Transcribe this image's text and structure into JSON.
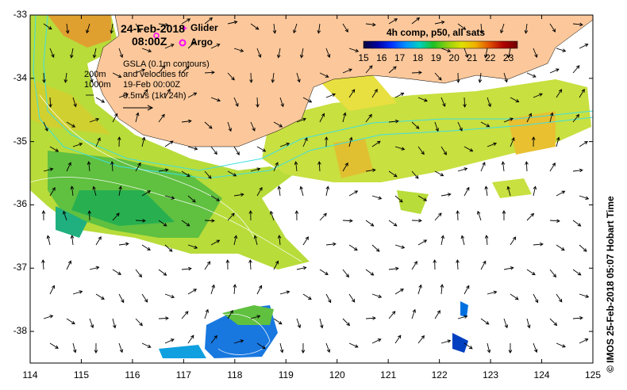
{
  "map": {
    "date": "24-Feb-2018",
    "time": "08:00Z",
    "legend": {
      "glider_label": "Glider",
      "argo_label": "Argo",
      "glider_color": "#ff00ff",
      "argo_color": "#ff00ff"
    },
    "gsla_text": [
      "GSLA (0.1m contours)",
      "and velocities for",
      "19-Feb 00:00Z",
      "0.5m/s (1kt 24h)"
    ],
    "depth_labels": [
      "200m",
      "1000m"
    ],
    "colorbar": {
      "title": "4h comp, p50, all sats",
      "min": 15,
      "max": 23.5,
      "ticks": [
        "15",
        "16",
        "17",
        "18",
        "19",
        "20",
        "21",
        "22",
        "23"
      ],
      "colors": [
        "#08083a",
        "#0000a0",
        "#0030ff",
        "#0090ff",
        "#00d0c0",
        "#20c020",
        "#90d010",
        "#e0e000",
        "#f0b000",
        "#e05000",
        "#b00000",
        "#700000"
      ]
    },
    "x_axis": {
      "min": 114,
      "max": 125,
      "ticks": [
        "114",
        "115",
        "116",
        "117",
        "118",
        "119",
        "120",
        "121",
        "122",
        "123",
        "124",
        "125"
      ]
    },
    "y_axis": {
      "min": -38.5,
      "max": -33,
      "ticks": [
        "-33",
        "-34",
        "-35",
        "-36",
        "-37",
        "-38"
      ]
    },
    "land_color": "#fcc89b",
    "credit": "© IMOS 25-Feb-2018 05:07 Hobart Time"
  }
}
